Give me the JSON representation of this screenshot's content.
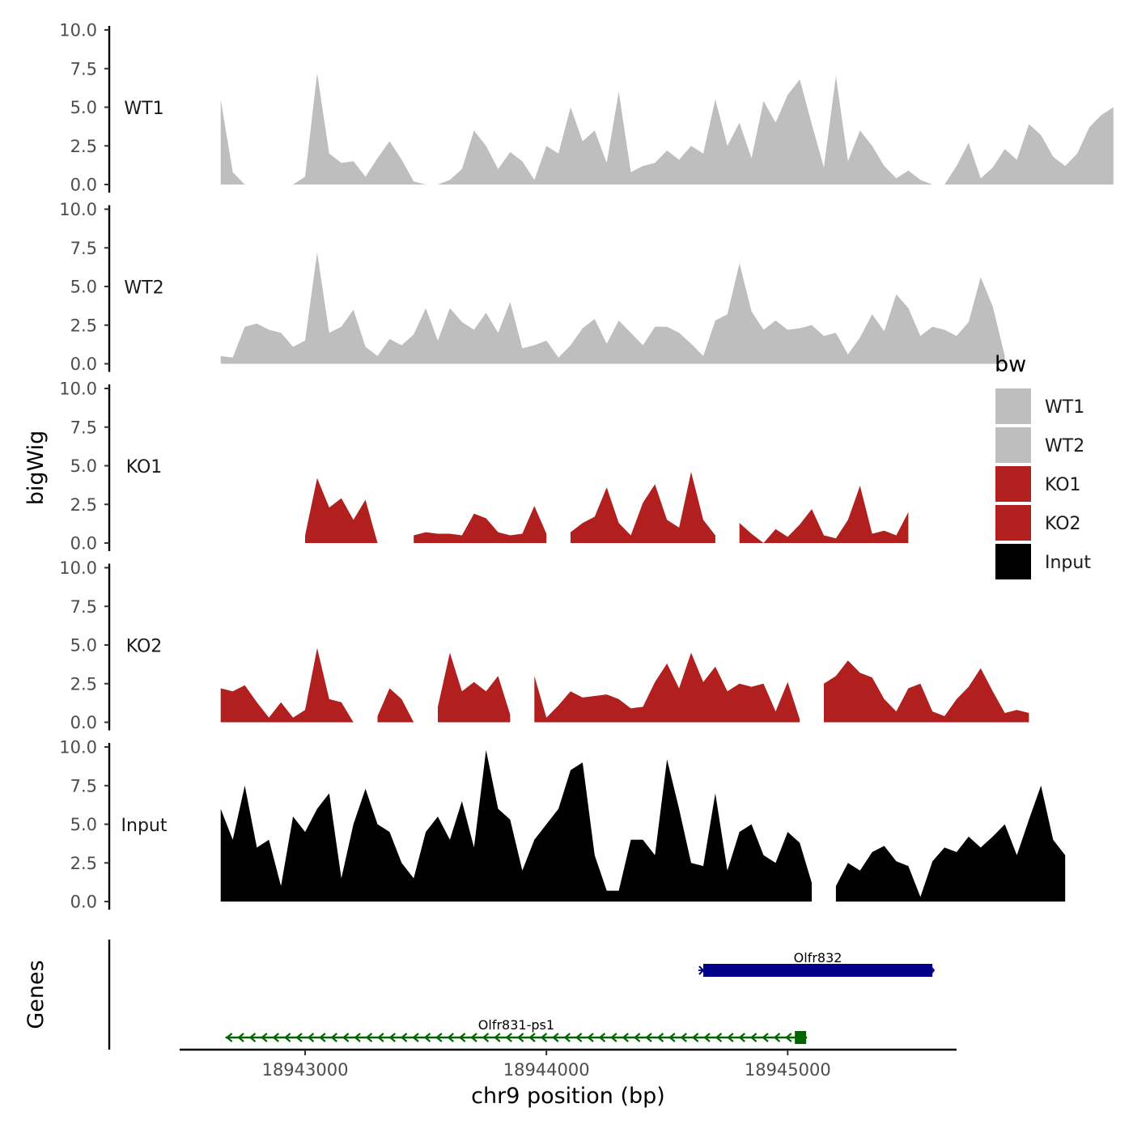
{
  "chart_data": {
    "type": "area",
    "ylabel": "bigWig",
    "genes_label": "Genes",
    "xlabel": "chr9 position (bp)",
    "xlim": [
      18942480,
      18945700
    ],
    "ylim": [
      0,
      10
    ],
    "y_ticks": [
      "0.0",
      "2.5",
      "5.0",
      "7.5",
      "10.0"
    ],
    "x_ticks": [
      {
        "value": 18943000,
        "label": "18943000"
      },
      {
        "value": 18944000,
        "label": "18944000"
      },
      {
        "value": 18945000,
        "label": "18945000"
      }
    ],
    "x_start": 18942650,
    "x_step": 50,
    "legend": {
      "title": "bw",
      "entries": [
        {
          "label": "WT1",
          "color": "#bebebe"
        },
        {
          "label": "WT2",
          "color": "#bebebe"
        },
        {
          "label": "KO1",
          "color": "#b21f1f"
        },
        {
          "label": "KO2",
          "color": "#b21f1f"
        },
        {
          "label": "Input",
          "color": "#000000"
        }
      ]
    },
    "series": [
      {
        "name": "WT1",
        "color": "#bebebe",
        "values": [
          5.5,
          0.8,
          0,
          0,
          0,
          0,
          0,
          0.5,
          7.2,
          2.0,
          1.4,
          1.5,
          0.5,
          1.7,
          2.8,
          1.6,
          0.2,
          0,
          0,
          0.3,
          1.0,
          3.5,
          2.5,
          1.0,
          2.1,
          1.5,
          0.3,
          2.5,
          2.0,
          5.0,
          2.8,
          3.5,
          1.4,
          6.0,
          0.8,
          1.2,
          1.4,
          2.2,
          1.6,
          2.5,
          2.0,
          5.5,
          2.5,
          4.0,
          1.7,
          5.4,
          4.0,
          5.8,
          6.8,
          3.9,
          1.1,
          7.0,
          1.5,
          3.5,
          2.5,
          1.2,
          0.4,
          0.9,
          0.3,
          0,
          0,
          1.2,
          2.7,
          0.4,
          1.1,
          2.3,
          1.6,
          3.9,
          3.2,
          1.8,
          1.2,
          2.0,
          3.7,
          4.5,
          5.0
        ]
      },
      {
        "name": "WT2",
        "color": "#bebebe",
        "values": [
          0.5,
          0.4,
          2.4,
          2.6,
          2.2,
          2.0,
          1.1,
          1.5,
          7.2,
          2.0,
          2.4,
          3.5,
          1.1,
          0.5,
          1.6,
          1.2,
          1.9,
          3.6,
          1.5,
          3.6,
          2.7,
          2.2,
          3.3,
          2.0,
          4.0,
          1.0,
          1.2,
          1.5,
          0.4,
          1.2,
          2.3,
          2.9,
          1.3,
          2.8,
          2.0,
          1.2,
          2.4,
          2.4,
          2.0,
          1.3,
          0.5,
          2.8,
          3.2,
          6.5,
          3.4,
          2.2,
          2.8,
          2.2,
          2.3,
          2.5,
          1.8,
          2.0,
          0.6,
          1.7,
          3.2,
          2.1,
          4.5,
          3.6,
          1.8,
          2.4,
          2.2,
          1.8,
          2.7,
          5.6,
          3.7,
          0.5
        ]
      },
      {
        "name": "KO1",
        "color": "#b21f1f",
        "values": [
          null,
          null,
          null,
          null,
          null,
          null,
          null,
          0.5,
          4.2,
          2.3,
          2.9,
          1.5,
          2.8,
          0,
          null,
          null,
          0.5,
          0.7,
          0.6,
          0.6,
          0.5,
          1.9,
          1.6,
          0.7,
          0.5,
          0.6,
          2.4,
          0.6,
          null,
          0.7,
          1.3,
          1.7,
          3.6,
          1.3,
          0.5,
          2.6,
          3.8,
          1.5,
          1.0,
          4.6,
          1.5,
          0.5,
          null,
          1.3,
          0.6,
          0,
          0.9,
          0.4,
          1.2,
          2.2,
          0.5,
          0.3,
          1.5,
          3.7,
          0.6,
          0.8,
          0.5,
          2.0
        ]
      },
      {
        "name": "KO2",
        "color": "#b21f1f",
        "values": [
          2.2,
          2.0,
          2.4,
          1.3,
          0.3,
          1.3,
          0.3,
          0.8,
          4.8,
          1.5,
          1.3,
          0,
          null,
          0.4,
          2.2,
          1.5,
          0,
          null,
          1.0,
          4.5,
          2.0,
          2.6,
          2.0,
          3.0,
          0.5,
          null,
          3.0,
          0.3,
          1.1,
          2.0,
          1.6,
          1.7,
          1.8,
          1.5,
          0.9,
          1.0,
          2.6,
          3.8,
          2.2,
          4.5,
          2.6,
          3.6,
          2.0,
          2.5,
          2.3,
          2.5,
          0.7,
          2.6,
          0.2,
          null,
          2.5,
          3.0,
          4.0,
          3.2,
          2.9,
          1.5,
          0.7,
          2.2,
          2.5,
          0.7,
          0.4,
          1.5,
          2.3,
          3.5,
          2.0,
          0.6,
          0.8,
          0.6
        ]
      },
      {
        "name": "Input",
        "color": "#000000",
        "values": [
          6.0,
          4.0,
          7.5,
          3.5,
          4.0,
          1.0,
          5.5,
          4.5,
          6.0,
          7.0,
          1.5,
          5.0,
          7.3,
          5.0,
          4.5,
          2.5,
          1.5,
          4.5,
          5.5,
          4.0,
          6.5,
          3.5,
          9.8,
          6.0,
          5.3,
          2.0,
          4.0,
          5.0,
          6.0,
          8.5,
          9.0,
          3.0,
          0.7,
          0.7,
          4.0,
          4.0,
          3.0,
          9.2,
          6.0,
          2.5,
          2.3,
          7.0,
          2.0,
          4.5,
          5.0,
          3.0,
          2.5,
          4.5,
          3.8,
          1.2,
          null,
          1.0,
          2.5,
          2.0,
          3.2,
          3.6,
          2.6,
          2.3,
          0.3,
          2.6,
          3.5,
          3.2,
          4.2,
          3.5,
          4.2,
          5.0,
          3.0,
          5.3,
          7.5,
          4.0,
          3.0
        ]
      }
    ],
    "genes": [
      {
        "name": "Olfr832",
        "start": 18944650,
        "end": 18945600,
        "strand": "+",
        "color": "#00008b"
      },
      {
        "name": "Olfr831-ps1",
        "start": 18942670,
        "end": 18945080,
        "strand": "-",
        "color": "#006400"
      }
    ]
  }
}
